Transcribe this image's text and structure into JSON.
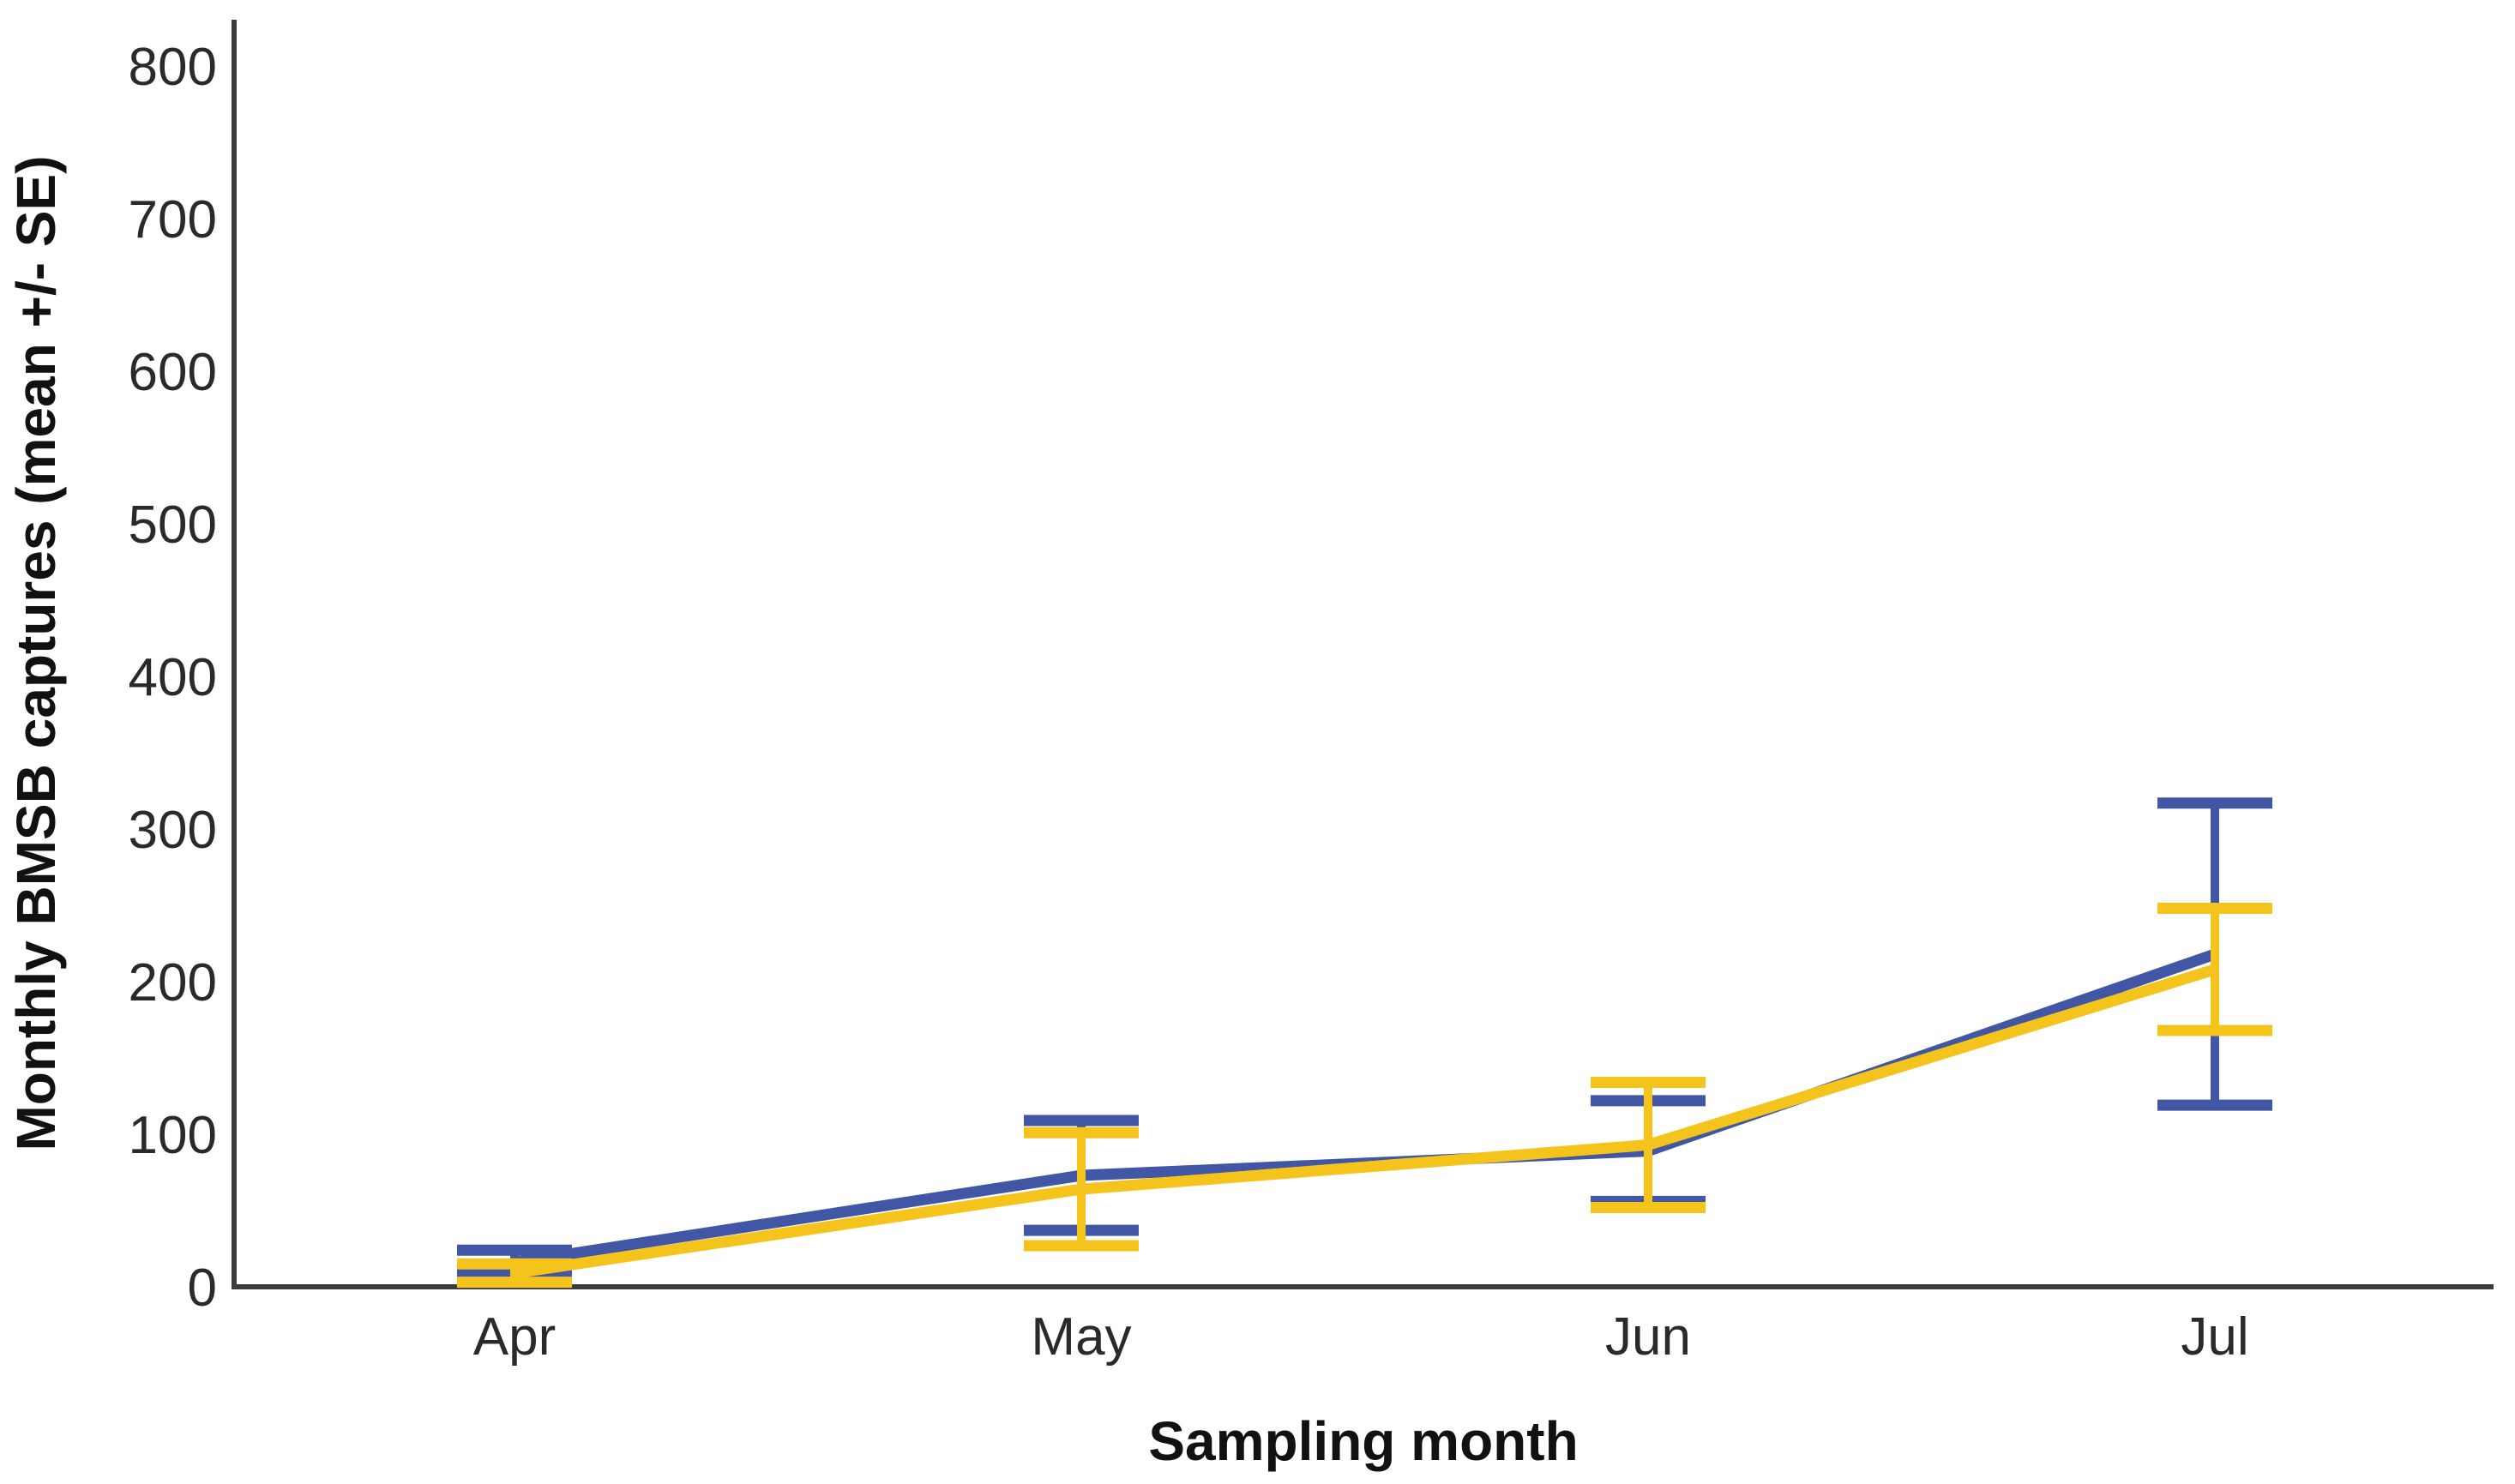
{
  "chart_data": {
    "type": "line",
    "title": "",
    "xlabel": "Sampling month",
    "ylabel": "Monthly BMSB captures (mean +/- SE)",
    "categories": [
      "Apr",
      "May",
      "Jun",
      "Jul"
    ],
    "y_axis": {
      "min": 0,
      "max": 800,
      "tick_step": 100,
      "tick_labels": [
        "0",
        "100",
        "200",
        "300",
        "400",
        "500",
        "600",
        "700",
        "800"
      ]
    },
    "grid": false,
    "legend": "none",
    "error_bars": "mean +/- SE with horizontal caps",
    "series": [
      {
        "id": "blue",
        "color": "#4156a4",
        "means": [
          16,
          73,
          89,
          218
        ],
        "se": [
          8,
          36,
          33,
          99
        ],
        "upper": [
          24,
          109,
          122,
          317
        ],
        "lower": [
          8,
          37,
          56,
          119
        ]
      },
      {
        "id": "yellow",
        "color": "#f5c41c",
        "means": [
          9,
          64,
          93,
          208
        ],
        "se": [
          6,
          37,
          41,
          40
        ],
        "upper": [
          15,
          101,
          134,
          248
        ],
        "lower": [
          3,
          27,
          52,
          168
        ]
      }
    ],
    "axis_color": "#3c3c3c"
  }
}
